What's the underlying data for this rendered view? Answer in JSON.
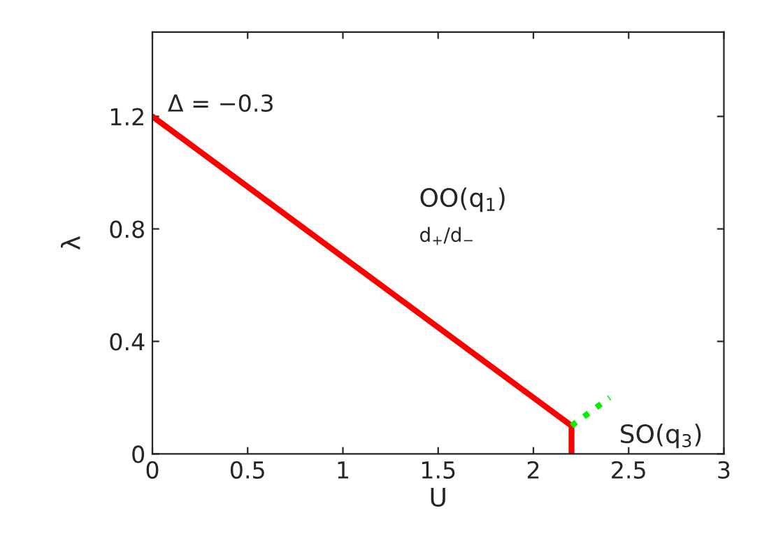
{
  "chart_data": {
    "type": "line",
    "xlabel": "U",
    "ylabel": "λ",
    "xlim": [
      0,
      3
    ],
    "xticks": [
      0,
      0.5,
      1,
      1.5,
      2,
      2.5,
      3
    ],
    "ylim": [
      0,
      1.5
    ],
    "yticks": [
      0,
      0.4,
      0.8,
      1.2
    ],
    "series": [
      {
        "color": "#ff0000",
        "x": [
          0,
          2.2,
          2.2
        ],
        "values": [
          1.2,
          0.1,
          0
        ],
        "line_style": "solid"
      },
      {
        "color": "#00ee00",
        "x": [
          2.2,
          2.4
        ],
        "values": [
          0.1,
          0.2
        ],
        "line_style": "dotted"
      }
    ],
    "annotations": [
      "Δ = −0.3",
      "OO(q$_{1}$)",
      "d$_{+}$/d$_{−}$",
      "SO(q$_{3}$)"
    ],
    "grid": false,
    "legend": false
  }
}
